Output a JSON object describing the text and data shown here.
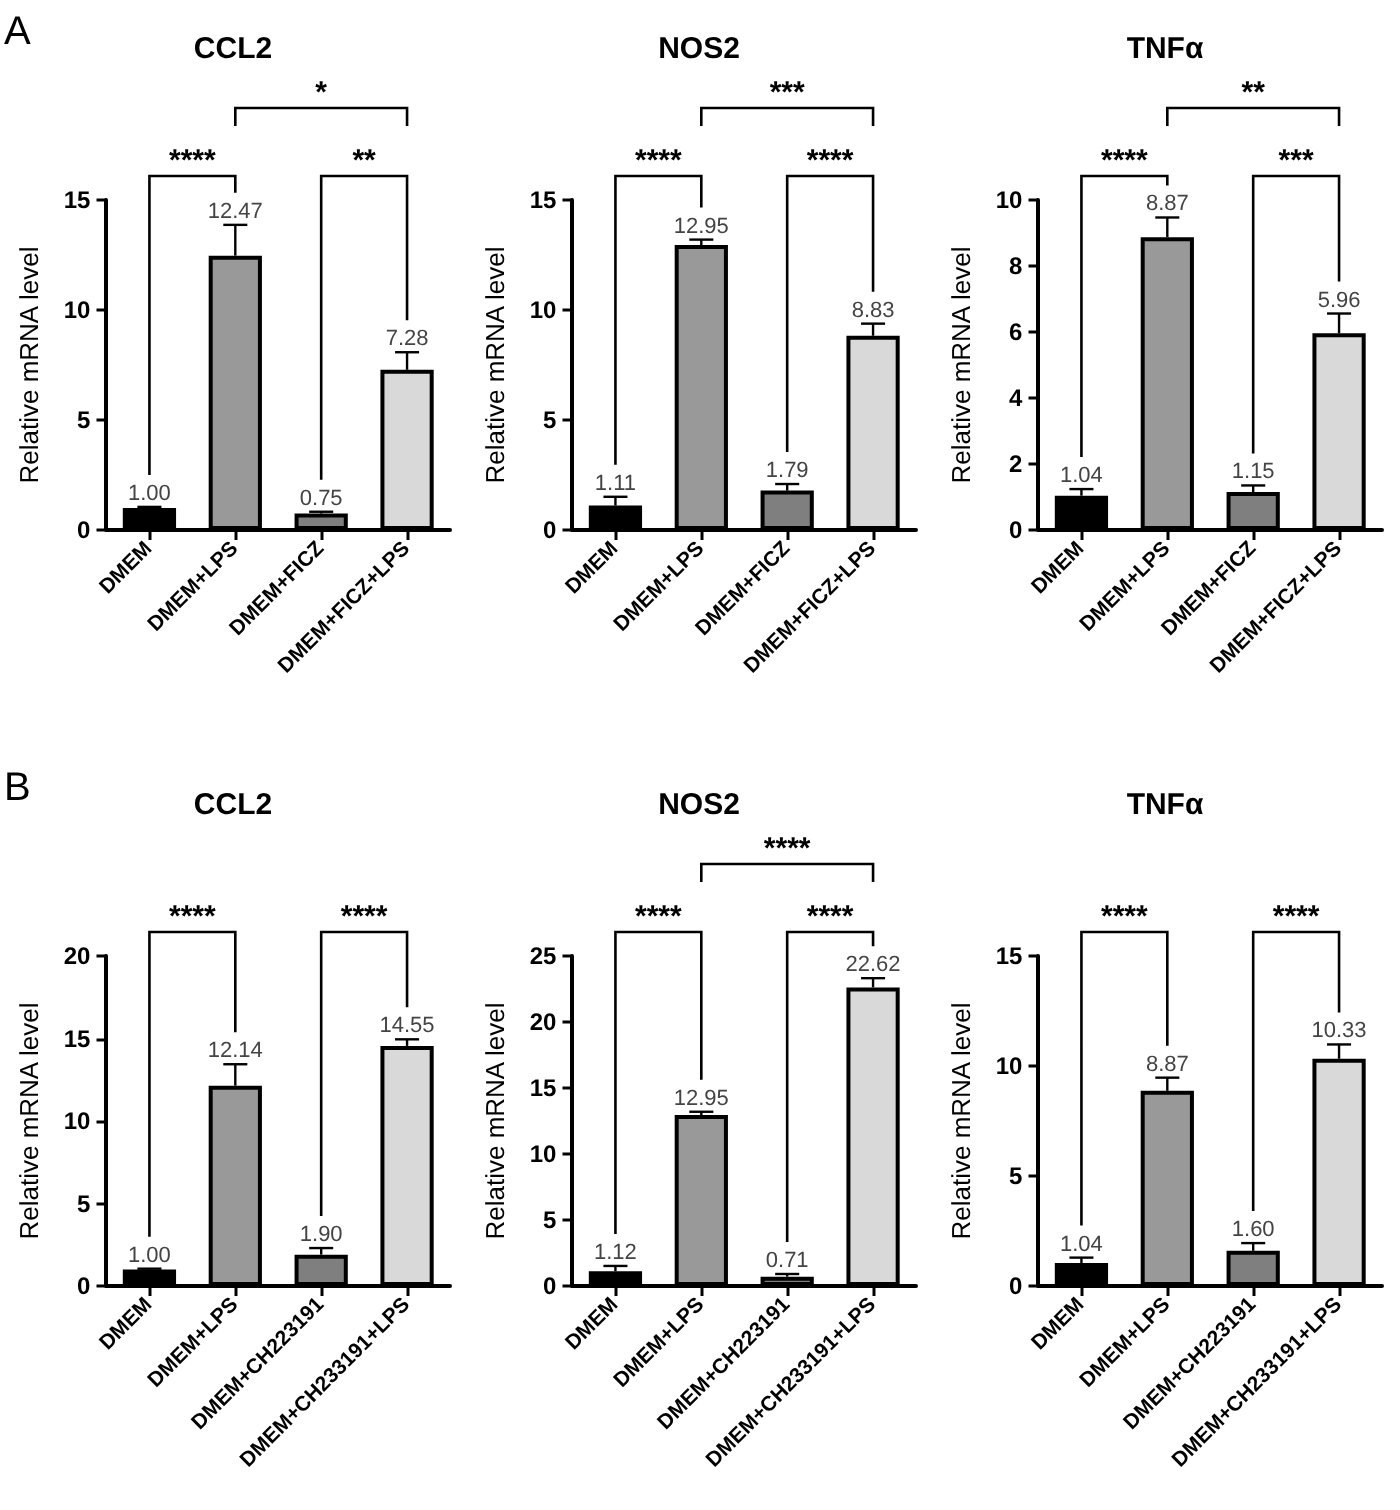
{
  "chart_data": [
    {
      "type": "bar",
      "title": "CCL2",
      "ylabel": "Relative mRNA level",
      "categories": [
        "DMEM",
        "DMEM+LPS",
        "DMEM+FICZ",
        "DMEM+FICZ+LPS"
      ],
      "values": [
        1.0,
        12.47,
        0.75,
        7.28
      ],
      "value_labels": [
        "1.00",
        "12.47",
        "0.75",
        "7.28"
      ],
      "errors": [
        0.05,
        1.4,
        0.08,
        0.8
      ],
      "colors": [
        "#000000",
        "#999999",
        "#7f7f7f",
        "#d9d9d9"
      ],
      "ylim": [
        0,
        15
      ],
      "yticks": [
        0,
        5,
        10,
        15
      ],
      "annotations": [
        "A",
        "****",
        "**",
        "*"
      ]
    },
    {
      "type": "bar",
      "title": "NOS2",
      "ylabel": "Relative mRNA level",
      "categories": [
        "DMEM",
        "DMEM+LPS",
        "DMEM+FICZ",
        "DMEM+FICZ+LPS"
      ],
      "values": [
        1.11,
        12.95,
        1.79,
        8.83
      ],
      "value_labels": [
        "1.11",
        "12.95",
        "1.79",
        "8.83"
      ],
      "errors": [
        0.4,
        0.25,
        0.3,
        0.55
      ],
      "colors": [
        "#000000",
        "#999999",
        "#7f7f7f",
        "#d9d9d9"
      ],
      "ylim": [
        0,
        15
      ],
      "yticks": [
        0,
        5,
        10,
        15
      ],
      "annotations": [
        "****",
        "****",
        "***"
      ]
    },
    {
      "type": "bar",
      "title": "TNFα",
      "ylabel": "Relative mRNA level",
      "categories": [
        "DMEM",
        "DMEM+LPS",
        "DMEM+FICZ",
        "DMEM+FICZ+LPS"
      ],
      "values": [
        1.04,
        8.87,
        1.15,
        5.96
      ],
      "value_labels": [
        "1.04",
        "8.87",
        "1.15",
        "5.96"
      ],
      "errors": [
        0.2,
        0.6,
        0.2,
        0.6
      ],
      "colors": [
        "#000000",
        "#999999",
        "#7f7f7f",
        "#d9d9d9"
      ],
      "ylim": [
        0,
        10
      ],
      "yticks": [
        0,
        2,
        4,
        6,
        8,
        10
      ],
      "annotations": [
        "****",
        "***",
        "**"
      ]
    },
    {
      "type": "bar",
      "title": "CCL2",
      "ylabel": "Relative mRNA level",
      "categories": [
        "DMEM",
        "DMEM+LPS",
        "DMEM+CH223191",
        "DMEM+CH233191+LPS"
      ],
      "values": [
        1.0,
        12.14,
        1.9,
        14.55
      ],
      "value_labels": [
        "1.00",
        "12.14",
        "1.90",
        "14.55"
      ],
      "errors": [
        0.05,
        1.3,
        0.4,
        0.4
      ],
      "colors": [
        "#000000",
        "#999999",
        "#7f7f7f",
        "#d9d9d9"
      ],
      "ylim": [
        0,
        20
      ],
      "yticks": [
        0,
        5,
        10,
        15,
        20
      ],
      "annotations": [
        "B",
        "****",
        "****"
      ]
    },
    {
      "type": "bar",
      "title": "NOS2",
      "ylabel": "Relative mRNA level",
      "categories": [
        "DMEM",
        "DMEM+LPS",
        "DMEM+CH223191",
        "DMEM+CH233191+LPS"
      ],
      "values": [
        1.12,
        12.95,
        0.71,
        22.62
      ],
      "value_labels": [
        "1.12",
        "12.95",
        "0.71",
        "22.62"
      ],
      "errors": [
        0.4,
        0.25,
        0.2,
        0.7
      ],
      "colors": [
        "#000000",
        "#999999",
        "#7f7f7f",
        "#d9d9d9"
      ],
      "ylim": [
        0,
        25
      ],
      "yticks": [
        0,
        5,
        10,
        15,
        20,
        25
      ],
      "annotations": [
        "****",
        "****",
        "****"
      ]
    },
    {
      "type": "bar",
      "title": "TNFα",
      "ylabel": "Relative mRNA level",
      "categories": [
        "DMEM",
        "DMEM+LPS",
        "DMEM+CH223191",
        "DMEM+CH233191+LPS"
      ],
      "values": [
        1.04,
        8.87,
        1.6,
        10.33
      ],
      "value_labels": [
        "1.04",
        "8.87",
        "1.60",
        "10.33"
      ],
      "errors": [
        0.25,
        0.6,
        0.35,
        0.65
      ],
      "colors": [
        "#000000",
        "#999999",
        "#7f7f7f",
        "#d9d9d9"
      ],
      "ylim": [
        0,
        15
      ],
      "yticks": [
        0,
        5,
        10,
        15
      ],
      "annotations": [
        "****",
        "****"
      ]
    }
  ]
}
